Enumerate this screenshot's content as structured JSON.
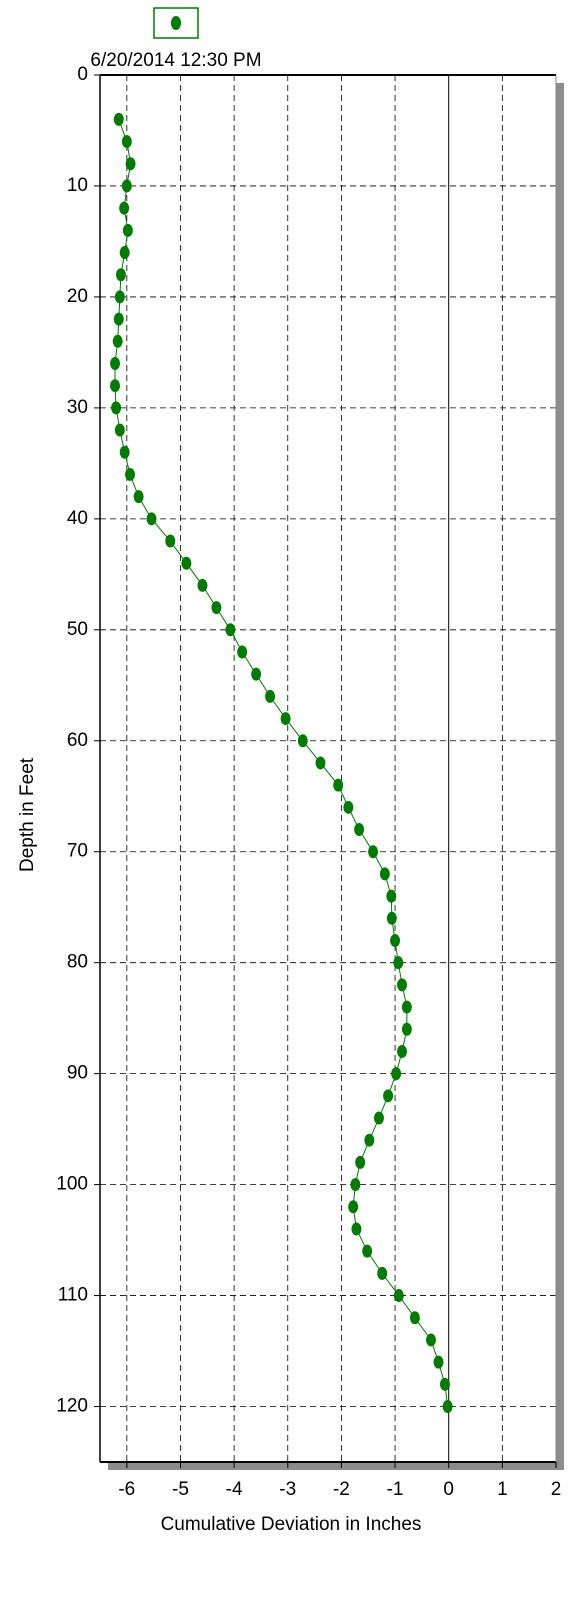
{
  "chart_data": {
    "type": "line",
    "x_label": "Cumulative Deviation in Inches",
    "y_label": "Depth in Feet",
    "xlim": [
      -6.5,
      2
    ],
    "xticks": [
      -6,
      -5,
      -4,
      -3,
      -2,
      -1,
      0,
      1,
      2
    ],
    "ylim": [
      0,
      125
    ],
    "yticks": [
      0,
      10,
      20,
      30,
      40,
      50,
      60,
      70,
      80,
      90,
      100,
      110,
      120
    ],
    "y_inverted": true,
    "grid": true,
    "series": [
      {
        "name": "6/20/2014 12:30 PM",
        "color": "#007a00",
        "x": [
          -6.15,
          -6.0,
          -5.93,
          -6.0,
          -6.05,
          -5.98,
          -6.04,
          -6.11,
          -6.13,
          -6.15,
          -6.17,
          -6.22,
          -6.22,
          -6.2,
          -6.13,
          -6.04,
          -5.94,
          -5.78,
          -5.54,
          -5.19,
          -4.89,
          -4.59,
          -4.33,
          -4.07,
          -3.85,
          -3.59,
          -3.33,
          -3.04,
          -2.72,
          -2.39,
          -2.06,
          -1.87,
          -1.67,
          -1.41,
          -1.19,
          -1.07,
          -1.06,
          -1.0,
          -0.94,
          -0.87,
          -0.78,
          -0.78,
          -0.87,
          -0.98,
          -1.13,
          -1.3,
          -1.48,
          -1.65,
          -1.74,
          -1.78,
          -1.72,
          -1.52,
          -1.24,
          -0.93,
          -0.63,
          -0.33,
          -0.19,
          -0.07,
          -0.02
        ],
        "y": [
          4,
          6,
          8,
          10,
          12,
          14,
          16,
          18,
          20,
          22,
          24,
          26,
          28,
          30,
          32,
          34,
          36,
          38,
          40,
          42,
          44,
          46,
          48,
          50,
          52,
          54,
          56,
          58,
          60,
          62,
          64,
          66,
          68,
          70,
          72,
          74,
          76,
          78,
          80,
          82,
          84,
          86,
          88,
          90,
          92,
          94,
          96,
          98,
          100,
          102,
          104,
          106,
          108,
          110,
          112,
          114,
          116,
          118,
          120
        ]
      }
    ]
  }
}
